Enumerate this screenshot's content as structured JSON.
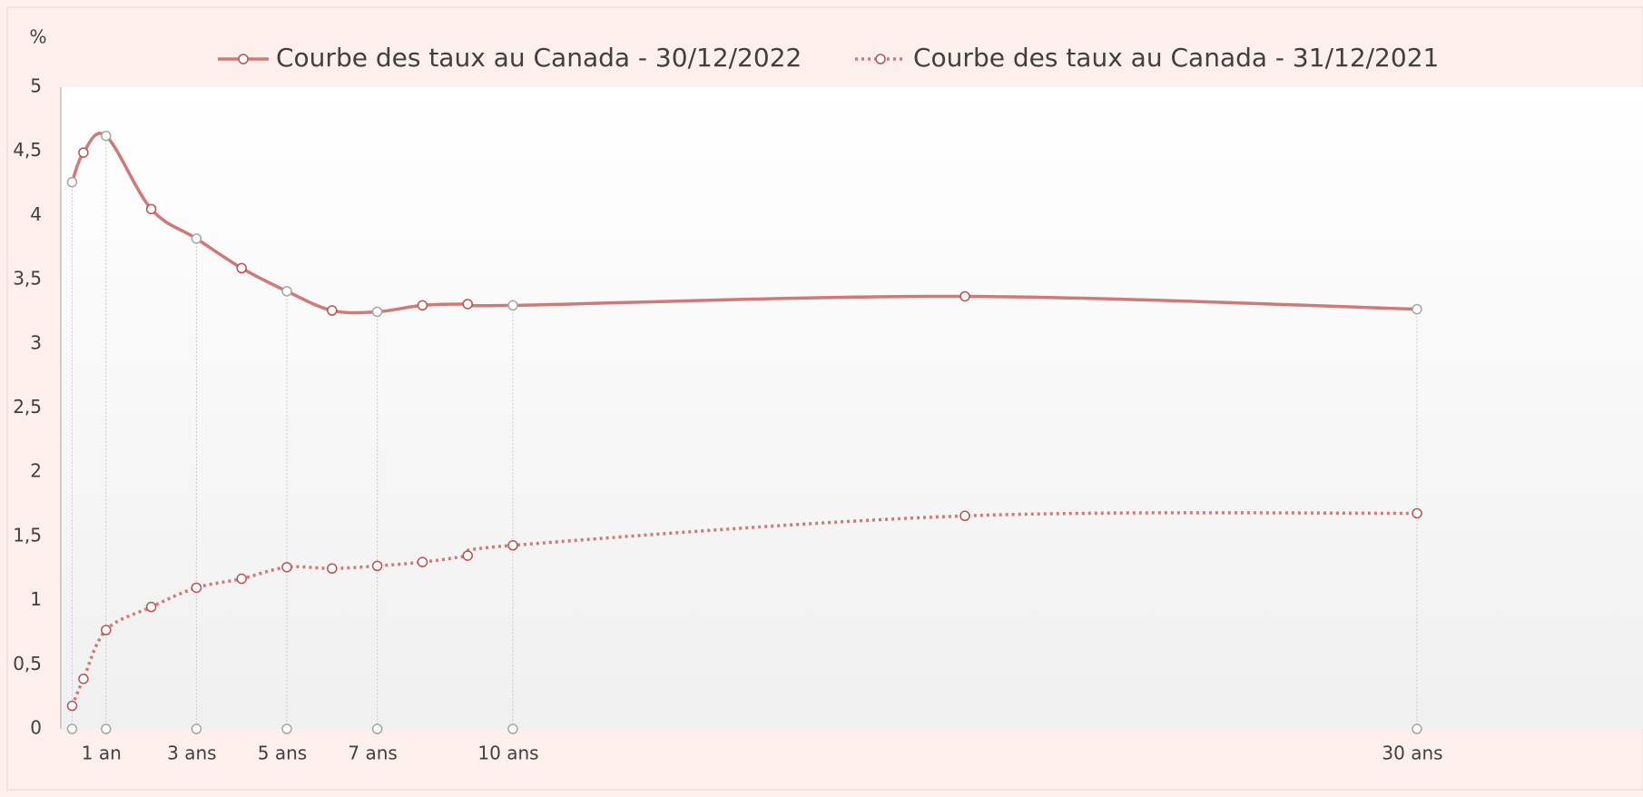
{
  "chart_data": {
    "type": "line",
    "y_unit_label": "%",
    "x": [
      0.25,
      0.5,
      1,
      2,
      3,
      4,
      5,
      6,
      7,
      8,
      9,
      10,
      20,
      30
    ],
    "series": [
      {
        "name": "Courbe des taux au Canada - 30/12/2022",
        "color": "#d07a78",
        "style": "solid",
        "values": [
          4.26,
          4.49,
          4.62,
          4.05,
          3.82,
          3.59,
          3.41,
          3.26,
          3.25,
          3.3,
          3.31,
          3.3,
          3.37,
          3.27
        ]
      },
      {
        "name": "Courbe des taux au Canada - 31/12/2021",
        "color": "#d07a78",
        "style": "dotted",
        "values": [
          0.18,
          0.39,
          0.77,
          0.95,
          1.1,
          1.17,
          1.26,
          1.25,
          1.27,
          1.3,
          1.35,
          1.43,
          1.66,
          1.68
        ]
      }
    ],
    "xlim": [
      0,
      35
    ],
    "xticks": [
      {
        "value": 0.25,
        "label": null
      },
      {
        "value": 1,
        "label": "1 an"
      },
      {
        "value": 3,
        "label": "3 ans"
      },
      {
        "value": 5,
        "label": "5 ans"
      },
      {
        "value": 7,
        "label": "7 ans"
      },
      {
        "value": 10,
        "label": "10 ans"
      },
      {
        "value": 30,
        "label": "30 ans"
      }
    ],
    "ylim": [
      0,
      5
    ],
    "yticks": [
      0,
      {
        "value": 0.5,
        "label": "0,5"
      },
      1,
      {
        "value": 1.5,
        "label": "1,5"
      },
      2,
      {
        "value": 2.5,
        "label": "2,5"
      },
      3,
      {
        "value": 3.5,
        "label": "3,5"
      },
      4,
      {
        "value": 4.5,
        "label": "4,5"
      },
      5
    ],
    "legend": "top"
  }
}
